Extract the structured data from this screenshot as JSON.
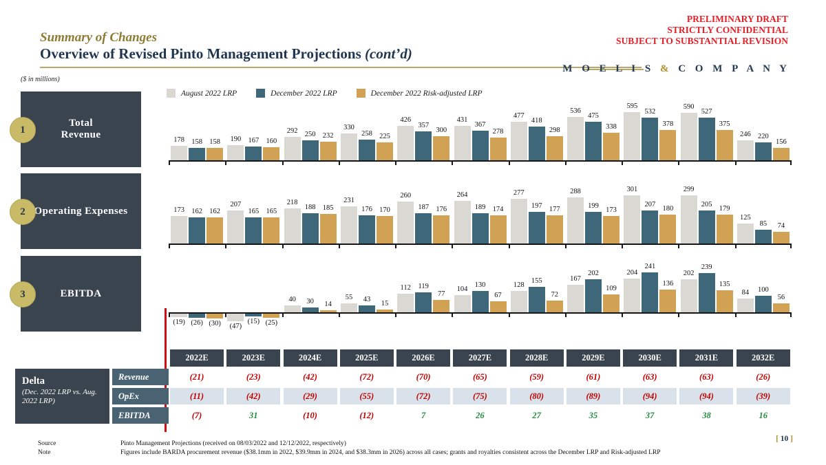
{
  "header": {
    "eyebrow": "Summary of Changes",
    "title": "Overview of Revised Pinto Management Projections ",
    "title_suffix": "(cont’d)",
    "classification": [
      "PRELIMINARY DRAFT",
      "STRICTLY CONFIDENTIAL",
      "SUBJECT TO SUBSTANTIAL REVISION"
    ],
    "brand": {
      "left": "M O E L I S",
      "amp": " & ",
      "right": "C O M P A N Y"
    }
  },
  "units_note": "($ in millions)",
  "legend": [
    {
      "label": "August 2022 LRP",
      "color": "#d9d8d3"
    },
    {
      "label": "December 2022 LRP",
      "color": "#3e6879"
    },
    {
      "label": "December 2022 Risk-adjusted LRP",
      "color": "#d2a254"
    }
  ],
  "sections": [
    {
      "num": "1",
      "lines": [
        "Total",
        "Revenue"
      ]
    },
    {
      "num": "2",
      "lines": [
        "Operating Expenses"
      ]
    },
    {
      "num": "3",
      "lines": [
        "EBITDA"
      ]
    }
  ],
  "chart_data": [
    {
      "type": "bar",
      "title": "Total Revenue",
      "categories": [
        "2022E",
        "2023E",
        "2024E",
        "2025E",
        "2026E",
        "2027E",
        "2028E",
        "2029E",
        "2030E",
        "2031E",
        "2032E"
      ],
      "series": [
        {
          "name": "August 2022 LRP",
          "values": [
            178,
            190,
            292,
            330,
            426,
            431,
            477,
            536,
            595,
            590,
            246
          ]
        },
        {
          "name": "December 2022 LRP",
          "values": [
            158,
            167,
            250,
            258,
            357,
            367,
            418,
            475,
            532,
            527,
            220
          ]
        },
        {
          "name": "December 2022 Risk-adjusted LRP",
          "values": [
            158,
            160,
            232,
            225,
            300,
            278,
            298,
            338,
            378,
            375,
            156
          ]
        }
      ],
      "ylabel": "$ in millions",
      "grid": false,
      "legend_position": "top"
    },
    {
      "type": "bar",
      "title": "Operating Expenses",
      "categories": [
        "2022E",
        "2023E",
        "2024E",
        "2025E",
        "2026E",
        "2027E",
        "2028E",
        "2029E",
        "2030E",
        "2031E",
        "2032E"
      ],
      "series": [
        {
          "name": "August 2022 LRP",
          "values": [
            173,
            207,
            218,
            231,
            260,
            264,
            277,
            288,
            301,
            299,
            125
          ]
        },
        {
          "name": "December 2022 LRP",
          "values": [
            162,
            165,
            188,
            176,
            187,
            189,
            197,
            199,
            207,
            205,
            85
          ]
        },
        {
          "name": "December 2022 Risk-adjusted LRP",
          "values": [
            162,
            165,
            185,
            170,
            176,
            174,
            177,
            173,
            180,
            179,
            74
          ]
        }
      ],
      "ylabel": "$ in millions",
      "grid": false,
      "legend_position": "top"
    },
    {
      "type": "bar",
      "title": "EBITDA",
      "categories": [
        "2022E",
        "2023E",
        "2024E",
        "2025E",
        "2026E",
        "2027E",
        "2028E",
        "2029E",
        "2030E",
        "2031E",
        "2032E"
      ],
      "series": [
        {
          "name": "August 2022 LRP",
          "values": [
            -19,
            -47,
            40,
            55,
            112,
            104,
            128,
            167,
            204,
            202,
            84
          ]
        },
        {
          "name": "December 2022 LRP",
          "values": [
            -26,
            -15,
            30,
            43,
            119,
            130,
            155,
            202,
            241,
            239,
            100
          ]
        },
        {
          "name": "December 2022 Risk-adjusted LRP",
          "values": [
            -30,
            -25,
            14,
            15,
            77,
            67,
            72,
            109,
            136,
            135,
            56
          ]
        }
      ],
      "ylabel": "$ in millions",
      "grid": false,
      "legend_position": "top",
      "note": "negative values shown in parentheses below axis"
    }
  ],
  "table": {
    "col_headers": [
      "2022E",
      "2023E",
      "2024E",
      "2025E",
      "2026E",
      "2027E",
      "2028E",
      "2029E",
      "2030E",
      "2031E",
      "2032E"
    ],
    "delta": {
      "title": "Delta",
      "subtitle": "(Dec. 2022 LRP vs. Aug. 2022 LRP)"
    },
    "rows": [
      {
        "label": "Revenue",
        "band": "#ffffff",
        "values": [
          -21,
          -23,
          -42,
          -72,
          -70,
          -65,
          -59,
          -61,
          -63,
          -63,
          -26
        ]
      },
      {
        "label": "OpEx",
        "band": "#d9e2ea",
        "values": [
          -11,
          -42,
          -29,
          -55,
          -72,
          -75,
          -80,
          -89,
          -94,
          -94,
          -39
        ]
      },
      {
        "label": "EBITDA",
        "band": "#ffffff",
        "values": [
          -7,
          31,
          -10,
          -12,
          7,
          26,
          27,
          35,
          37,
          38,
          16
        ]
      }
    ]
  },
  "footer": {
    "source_label": "Source",
    "source_text": "Pinto Management Projections  (received on 08/03/2022 and 12/12/2022, respectively)",
    "note_label": "Note",
    "note_text": "Figures include BARDA procurement  revenue  ($38.1mm in 2022, $39.9mm in 2024, and $38.3mm in 2026) across  all cases;  grants and royalties consistent  across the December LRP and Risk-adjusted LRP",
    "page": "10"
  },
  "colors": {
    "accent_red": "#e41e26",
    "navy": "#1f3650",
    "gold": "#b9a66a",
    "dark_box": "#39444e",
    "row_label_box": "#4a6373",
    "negative_value": "#c00000",
    "positive_value": "#238b3f",
    "red_divider": "#cc0e12"
  }
}
